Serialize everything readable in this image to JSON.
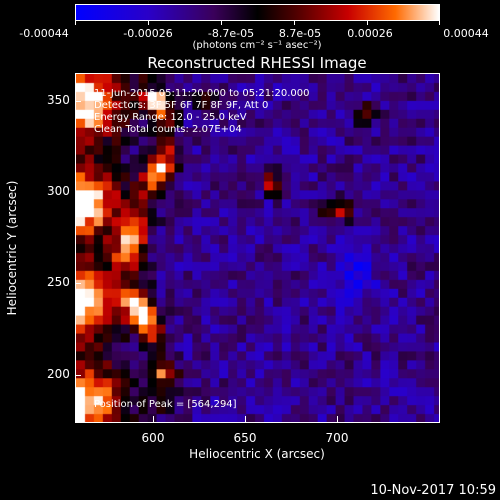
{
  "colorbar": {
    "tick_labels": [
      "-0.00044",
      "-0.00026",
      "-8.7e-05",
      "8.7e-05",
      "0.00026",
      "0.00044"
    ],
    "units": "(photons cm⁻² s⁻¹ asec⁻²)",
    "colors": [
      "#0000ff",
      "#2a00c8",
      "#3a005a",
      "#000000",
      "#5a0000",
      "#c80000",
      "#ff6a00",
      "#ffffff"
    ]
  },
  "title": "Reconstructed RHESSI Image",
  "info": {
    "time_range": "11-Jun-2015 05:11:20.000 to 05:21:20.000",
    "detectors": "Detectors: 3F 5F 6F 7F 8F 9F, Att 0",
    "energy": "Energy Range: 12.0 - 25.0 keV",
    "method": "Clean    Total counts: 2.07E+04",
    "peak": "Position of Peak = [564,294]"
  },
  "axes": {
    "x_label": "Heliocentric X (arcsec)",
    "y_label": "Heliocentric Y (arcsec)",
    "x_ticks": [
      "600",
      "650",
      "700"
    ],
    "y_ticks": [
      "350",
      "300",
      "250",
      "200"
    ],
    "x_range": [
      560,
      748
    ],
    "y_range": [
      172,
      370
    ]
  },
  "footer": {
    "date": "10-Nov-2017 10:59"
  },
  "chart_data": {
    "type": "heatmap",
    "title": "Reconstructed RHESSI Image",
    "xlabel": "Heliocentric X (arcsec)",
    "ylabel": "Heliocentric Y (arcsec)",
    "xlim": [
      560,
      748
    ],
    "ylim": [
      172,
      370
    ],
    "colorbar_range": [
      -0.00044,
      0.00044
    ],
    "peak": [
      564,
      294
    ]
  }
}
